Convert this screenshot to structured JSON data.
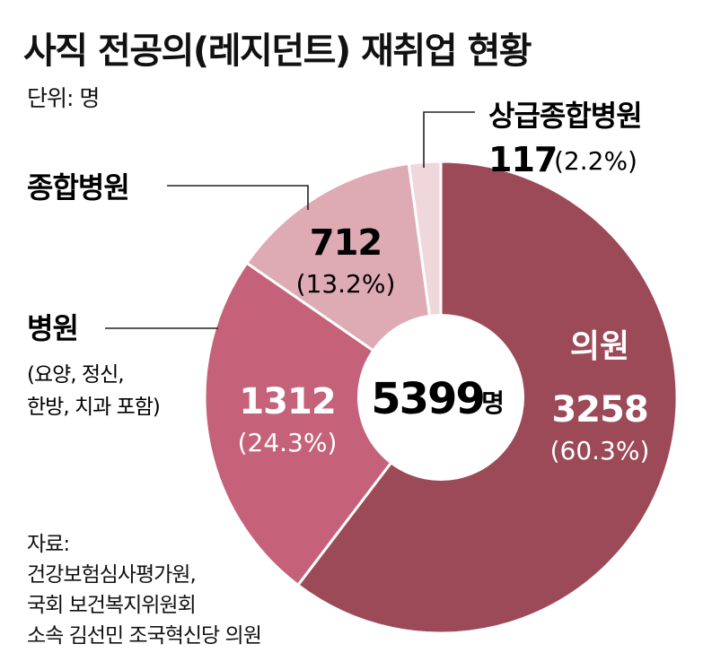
{
  "title": "사직 전공의(레지던트) 재취업 현황",
  "unit_label": "단위: 명",
  "source": {
    "lines": [
      "자료:",
      "건강보험심사평가원,",
      "국회 보건복지위원회",
      "소속 김선민 조국혁신당 의원"
    ]
  },
  "center": {
    "total": "5399",
    "unit": "명"
  },
  "colors": {
    "clinic": "#9d4a58",
    "hospital": "#c56279",
    "general": "#deaab4",
    "tertiary": "#efd7dc"
  },
  "chart_data": {
    "type": "pie",
    "donut": true,
    "title": "사직 전공의(레지던트) 재취업 현황",
    "unit": "명",
    "total": 5399,
    "slices": [
      {
        "label": "의원",
        "value": 3258,
        "value_text": "3258",
        "percent_text": "(60.3%)",
        "color": "#9d4a58"
      },
      {
        "label": "병원",
        "note": [
          "(요양, 정신,",
          "한방, 치과 포함)"
        ],
        "value": 1312,
        "value_text": "1312",
        "percent_text": "(24.3%)",
        "color": "#c56279"
      },
      {
        "label": "종합병원",
        "value": 712,
        "value_text": "712",
        "percent_text": "(13.2%)",
        "color": "#deaab4"
      },
      {
        "label": "상급종합병원",
        "value": 117,
        "value_text": "117",
        "percent_text": "(2.2%)",
        "color": "#efd7dc"
      }
    ]
  }
}
